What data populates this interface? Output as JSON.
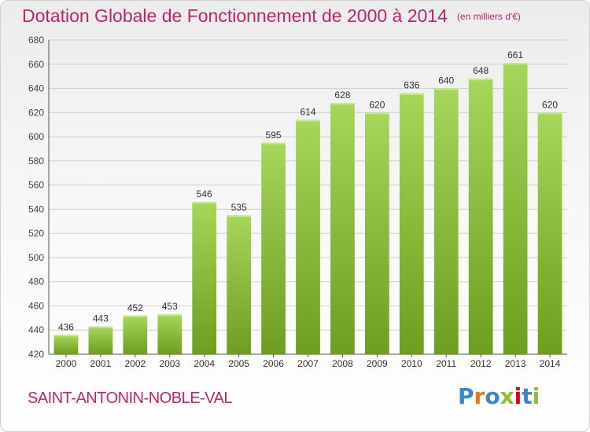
{
  "title": "Dotation Globale de Fonctionnement de 2000 à 2014",
  "subtitle": "(en milliers d'€)",
  "commune": "SAINT-ANTONIN-NOBLE-VAL",
  "logo": {
    "text": "Proxiti",
    "colors": [
      "#3a86c8",
      "#e8731f",
      "#3a86c8",
      "#8cbf2f",
      "#e2001a",
      "#3a86c8",
      "#8cbf2f"
    ]
  },
  "colors": {
    "title": "#c0246a",
    "bar_light": "#a6d65a",
    "bar_dark": "#6e9e1f",
    "grid": "#cfcfcf"
  },
  "chart_data": {
    "type": "bar",
    "categories": [
      "2000",
      "2001",
      "2002",
      "2003",
      "2004",
      "2005",
      "2006",
      "2007",
      "2008",
      "2009",
      "2010",
      "2011",
      "2012",
      "2013",
      "2014"
    ],
    "values": [
      436,
      443,
      452,
      453,
      546,
      535,
      595,
      614,
      628,
      620,
      636,
      640,
      648,
      661,
      620
    ],
    "ylim": [
      420,
      680
    ],
    "yticks": [
      420,
      440,
      460,
      480,
      500,
      520,
      540,
      560,
      580,
      600,
      620,
      640,
      660,
      680
    ],
    "grid": true,
    "data_labels": true
  }
}
